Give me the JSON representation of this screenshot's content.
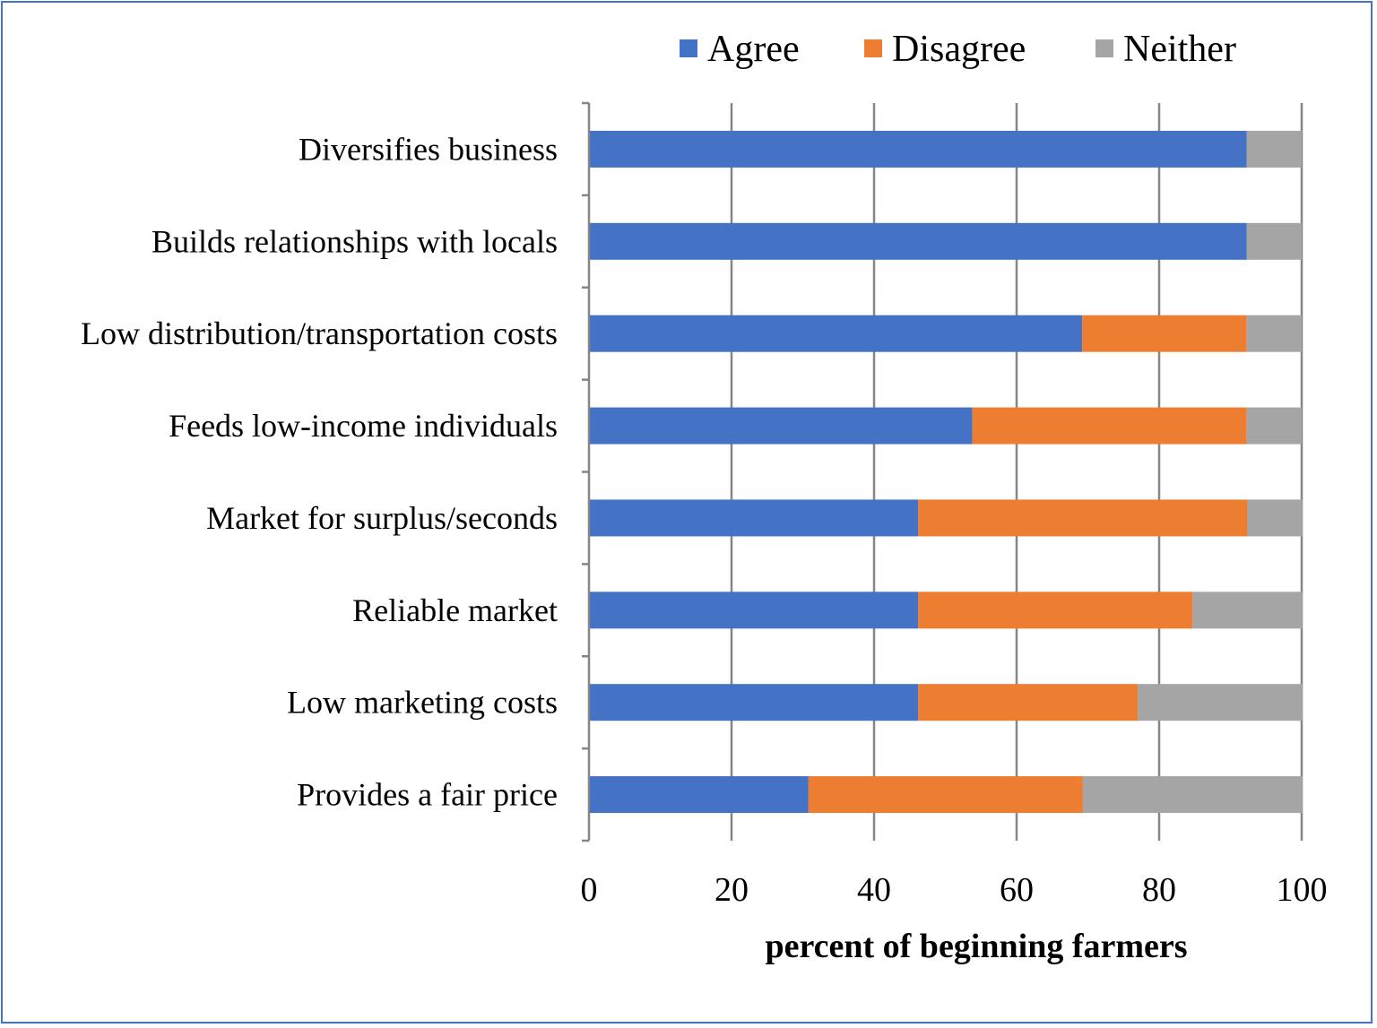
{
  "chart_data": {
    "type": "bar",
    "orientation": "horizontal",
    "stacked": true,
    "title": "",
    "xlabel": "percent of beginning farmers",
    "ylabel": "",
    "xlim": [
      0,
      100
    ],
    "xticks": [
      0,
      20,
      40,
      60,
      80,
      100
    ],
    "grid": "vertical",
    "legend_position": "top",
    "categories": [
      "Diversifies business",
      "Builds relationships with locals",
      "Low distribution/transportation costs",
      "Feeds low-income individuals",
      "Market for surplus/seconds",
      "Reliable market",
      "Low marketing costs",
      "Provides a fair price"
    ],
    "series": [
      {
        "name": "Agree",
        "color": "#4472c4",
        "values": [
          92.3,
          92.3,
          69.2,
          53.8,
          46.2,
          46.2,
          46.2,
          30.8
        ]
      },
      {
        "name": "Disagree",
        "color": "#ed7d31",
        "values": [
          0,
          0,
          23.1,
          38.5,
          46.2,
          38.5,
          30.8,
          38.5
        ]
      },
      {
        "name": "Neither",
        "color": "#a5a5a5",
        "values": [
          7.7,
          7.7,
          7.7,
          7.7,
          7.7,
          15.4,
          23.1,
          30.8
        ]
      }
    ]
  }
}
